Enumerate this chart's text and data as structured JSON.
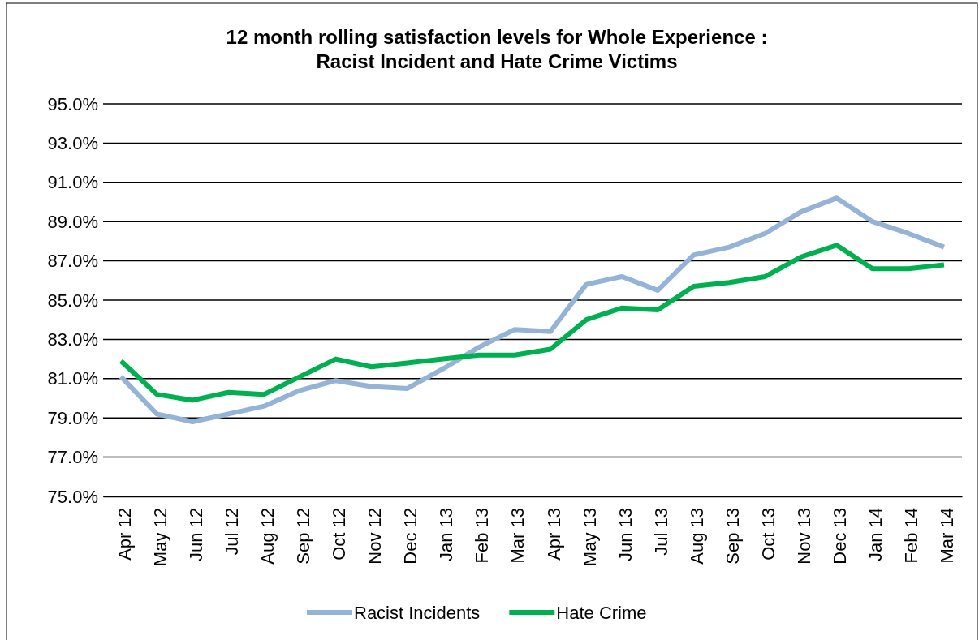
{
  "chart_data": {
    "type": "line",
    "title": "12 month rolling satisfaction levels for Whole Experience :\nRacist Incident and Hate Crime Victims",
    "categories": [
      "Apr 12",
      "May 12",
      "Jun 12",
      "Jul 12",
      "Aug 12",
      "Sep 12",
      "Oct 12",
      "Nov 12",
      "Dec 12",
      "Jan 13",
      "Feb 13",
      "Mar 13",
      "Apr 13",
      "May 13",
      "Jun 13",
      "Jul 13",
      "Aug 13",
      "Sep 13",
      "Oct 13",
      "Nov 13",
      "Dec 13",
      "Jan 14",
      "Feb 14",
      "Mar 14"
    ],
    "series": [
      {
        "name": "Racist Incidents",
        "color": "#95b3d7",
        "values": [
          81.1,
          79.2,
          78.8,
          79.2,
          79.6,
          80.4,
          80.9,
          80.6,
          80.5,
          81.5,
          82.6,
          83.5,
          83.4,
          85.8,
          86.2,
          85.5,
          87.3,
          87.7,
          88.4,
          89.5,
          90.2,
          89.0,
          88.4,
          87.7
        ]
      },
      {
        "name": "Hate Crime",
        "color": "#00b050",
        "values": [
          81.9,
          80.2,
          79.9,
          80.3,
          80.2,
          81.1,
          82.0,
          81.6,
          81.8,
          82.0,
          82.2,
          82.2,
          82.5,
          84.0,
          84.6,
          84.5,
          85.7,
          85.9,
          86.2,
          87.2,
          87.8,
          86.6,
          86.6,
          86.8
        ]
      }
    ],
    "ylim": [
      75,
      95
    ],
    "yticks": [
      {
        "value": 75,
        "label": "75.0%"
      },
      {
        "value": 77,
        "label": "77.0%"
      },
      {
        "value": 79,
        "label": "79.0%"
      },
      {
        "value": 81,
        "label": "81.0%"
      },
      {
        "value": 83,
        "label": "83.0%"
      },
      {
        "value": 85,
        "label": "85.0%"
      },
      {
        "value": 87,
        "label": "87.0%"
      },
      {
        "value": 89,
        "label": "89.0%"
      },
      {
        "value": 91,
        "label": "91.0%"
      },
      {
        "value": 93,
        "label": "93.0%"
      },
      {
        "value": 95,
        "label": "95.0%"
      }
    ],
    "grid": "y",
    "legend": "bottom",
    "marker": "none",
    "line_style": "solid"
  }
}
